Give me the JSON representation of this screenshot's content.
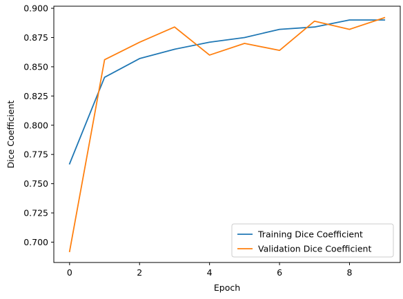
{
  "chart_data": {
    "type": "line",
    "xlabel": "Epoch",
    "ylabel": "Dice Coefficient",
    "xlim": [
      -0.45,
      9.45
    ],
    "ylim": [
      0.6826,
      0.9018
    ],
    "xticks": [
      0,
      2,
      4,
      6,
      8
    ],
    "xtick_labels": [
      "0",
      "2",
      "4",
      "6",
      "8"
    ],
    "yticks": [
      0.7,
      0.725,
      0.75,
      0.775,
      0.8,
      0.825,
      0.85,
      0.875,
      0.9
    ],
    "ytick_labels": [
      "0.700",
      "0.725",
      "0.750",
      "0.775",
      "0.800",
      "0.825",
      "0.850",
      "0.875",
      "0.900"
    ],
    "grid": false,
    "legend_position": "lower-right",
    "x": [
      0,
      1,
      2,
      3,
      4,
      5,
      6,
      7,
      8,
      9
    ],
    "series": [
      {
        "name": "Training Dice Coefficient",
        "color": "#1f77b4",
        "values": [
          0.767,
          0.841,
          0.857,
          0.865,
          0.871,
          0.875,
          0.882,
          0.884,
          0.89,
          0.89
        ]
      },
      {
        "name": "Validation Dice Coefficient",
        "color": "#ff7f0e",
        "values": [
          0.692,
          0.856,
          0.871,
          0.884,
          0.86,
          0.87,
          0.864,
          0.889,
          0.882,
          0.892
        ]
      }
    ]
  }
}
